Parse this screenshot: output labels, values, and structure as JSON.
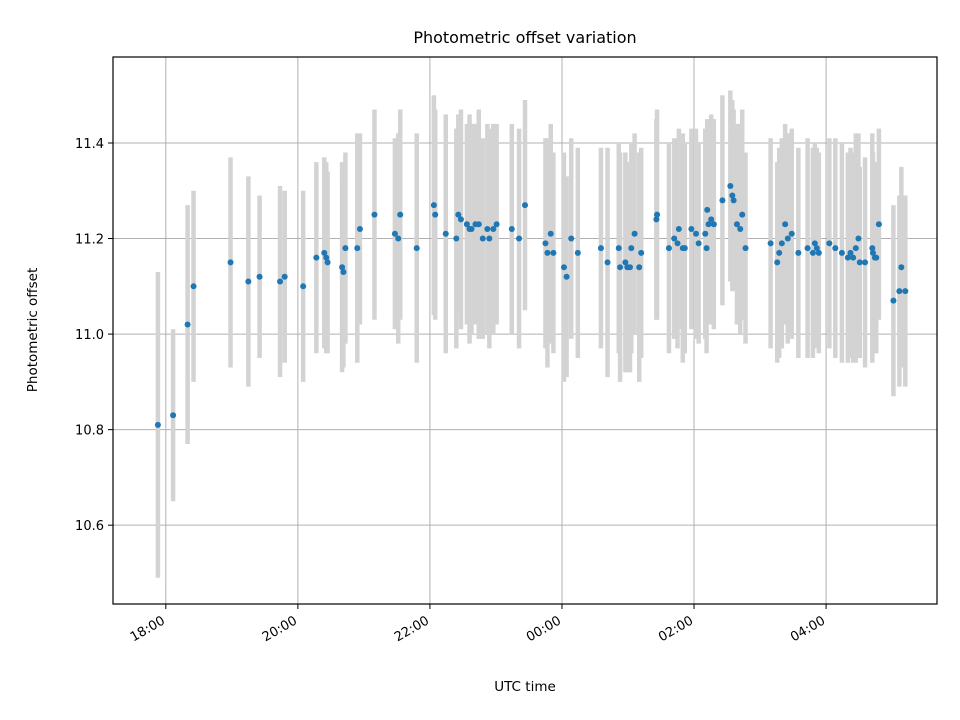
{
  "chart_data": {
    "type": "scatter",
    "title": "Photometric offset variation",
    "xlabel": "UTC time",
    "ylabel": "Photometric offset",
    "x_unit": "hours (UTC clock, values after 24 are the next day)",
    "xlim": [
      17.2,
      29.68
    ],
    "ylim": [
      10.435,
      11.58
    ],
    "grid": true,
    "x_ticks": [
      {
        "value": 18,
        "label": "18:00"
      },
      {
        "value": 20,
        "label": "20:00"
      },
      {
        "value": 22,
        "label": "22:00"
      },
      {
        "value": 24,
        "label": "00:00"
      },
      {
        "value": 26,
        "label": "02:00"
      },
      {
        "value": 28,
        "label": "04:00"
      }
    ],
    "y_ticks": [
      {
        "value": 10.6,
        "label": "10.6"
      },
      {
        "value": 10.8,
        "label": "10.8"
      },
      {
        "value": 11.0,
        "label": "11.0"
      },
      {
        "value": 11.2,
        "label": "11.2"
      },
      {
        "value": 11.4,
        "label": "11.4"
      }
    ],
    "colors": {
      "points": "#1f77b4",
      "errorbars": "#d3d3d3",
      "grid": "#b0b0b0"
    },
    "series": [
      {
        "x": [
          17.88,
          18.11,
          18.33,
          18.42,
          18.98,
          19.25,
          19.42,
          19.73,
          19.8,
          20.08,
          20.28,
          20.4,
          20.43,
          20.45,
          20.67,
          20.69,
          20.72,
          20.9,
          20.94,
          21.16,
          21.47,
          21.52,
          21.55,
          21.8,
          22.06,
          22.08,
          22.24,
          22.4,
          22.43,
          22.47,
          22.56,
          22.6,
          22.63,
          22.69,
          22.74,
          22.8,
          22.87,
          22.9,
          22.96,
          23.01,
          23.24,
          23.35,
          23.44,
          23.75,
          23.78,
          23.83,
          23.87,
          24.03,
          24.07,
          24.14,
          24.24,
          24.59,
          24.69,
          24.86,
          24.88,
          24.96,
          24.99,
          25.03,
          25.05,
          25.1,
          25.17,
          25.2,
          25.43,
          25.44,
          25.62,
          25.7,
          25.75,
          25.77,
          25.83,
          25.86,
          25.96,
          26.03,
          26.07,
          26.17,
          26.19,
          26.2,
          26.22,
          26.26,
          26.3,
          26.43,
          26.55,
          26.58,
          26.6,
          26.65,
          26.7,
          26.73,
          26.78,
          27.16,
          27.26,
          27.29,
          27.33,
          27.38,
          27.42,
          27.48,
          27.58,
          27.72,
          27.8,
          27.83,
          27.86,
          27.89,
          28.05,
          28.14,
          28.24,
          28.33,
          28.37,
          28.41,
          28.45,
          28.49,
          28.51,
          28.59,
          28.7,
          28.71,
          28.74,
          28.76,
          28.8,
          29.02,
          29.11,
          29.14,
          29.2
        ],
        "y": [
          10.81,
          10.83,
          11.02,
          11.1,
          11.15,
          11.11,
          11.12,
          11.11,
          11.12,
          11.1,
          11.16,
          11.17,
          11.16,
          11.15,
          11.14,
          11.13,
          11.18,
          11.18,
          11.22,
          11.25,
          11.21,
          11.2,
          11.25,
          11.18,
          11.27,
          11.25,
          11.21,
          11.2,
          11.25,
          11.24,
          11.23,
          11.22,
          11.22,
          11.23,
          11.23,
          11.2,
          11.22,
          11.2,
          11.22,
          11.23,
          11.22,
          11.2,
          11.27,
          11.19,
          11.17,
          11.21,
          11.17,
          11.14,
          11.12,
          11.2,
          11.17,
          11.18,
          11.15,
          11.18,
          11.14,
          11.15,
          11.14,
          11.14,
          11.18,
          11.21,
          11.14,
          11.17,
          11.24,
          11.25,
          11.18,
          11.2,
          11.19,
          11.22,
          11.18,
          11.18,
          11.22,
          11.21,
          11.19,
          11.21,
          11.18,
          11.26,
          11.23,
          11.24,
          11.23,
          11.28,
          11.31,
          11.29,
          11.28,
          11.23,
          11.22,
          11.25,
          11.18,
          11.19,
          11.15,
          11.17,
          11.19,
          11.23,
          11.2,
          11.21,
          11.17,
          11.18,
          11.17,
          11.19,
          11.18,
          11.17,
          11.19,
          11.18,
          11.17,
          11.16,
          11.17,
          11.16,
          11.18,
          11.2,
          11.15,
          11.15,
          11.18,
          11.17,
          11.16,
          11.16,
          11.23,
          11.07,
          11.09,
          11.14,
          11.09
        ],
        "yerr": [
          0.32,
          0.18,
          0.25,
          0.2,
          0.22,
          0.22,
          0.17,
          0.2,
          0.18,
          0.2,
          0.2,
          0.2,
          0.2,
          0.19,
          0.22,
          0.2,
          0.2,
          0.24,
          0.2,
          0.22,
          0.2,
          0.22,
          0.22,
          0.24,
          0.23,
          0.22,
          0.25,
          0.23,
          0.21,
          0.23,
          0.21,
          0.24,
          0.22,
          0.21,
          0.24,
          0.21,
          0.22,
          0.23,
          0.22,
          0.21,
          0.22,
          0.23,
          0.22,
          0.22,
          0.24,
          0.23,
          0.21,
          0.24,
          0.21,
          0.21,
          0.22,
          0.21,
          0.24,
          0.22,
          0.24,
          0.23,
          0.22,
          0.22,
          0.22,
          0.21,
          0.24,
          0.22,
          0.21,
          0.22,
          0.22,
          0.21,
          0.22,
          0.21,
          0.24,
          0.22,
          0.21,
          0.22,
          0.21,
          0.22,
          0.22,
          0.19,
          0.21,
          0.22,
          0.22,
          0.22,
          0.2,
          0.2,
          0.19,
          0.21,
          0.22,
          0.22,
          0.2,
          0.22,
          0.21,
          0.22,
          0.22,
          0.21,
          0.22,
          0.22,
          0.22,
          0.23,
          0.22,
          0.21,
          0.21,
          0.21,
          0.22,
          0.23,
          0.23,
          0.22,
          0.22,
          0.22,
          0.24,
          0.22,
          0.2,
          0.22,
          0.24,
          0.21,
          0.2,
          0.2,
          0.2,
          0.2,
          0.2,
          0.21,
          0.2
        ]
      }
    ]
  }
}
